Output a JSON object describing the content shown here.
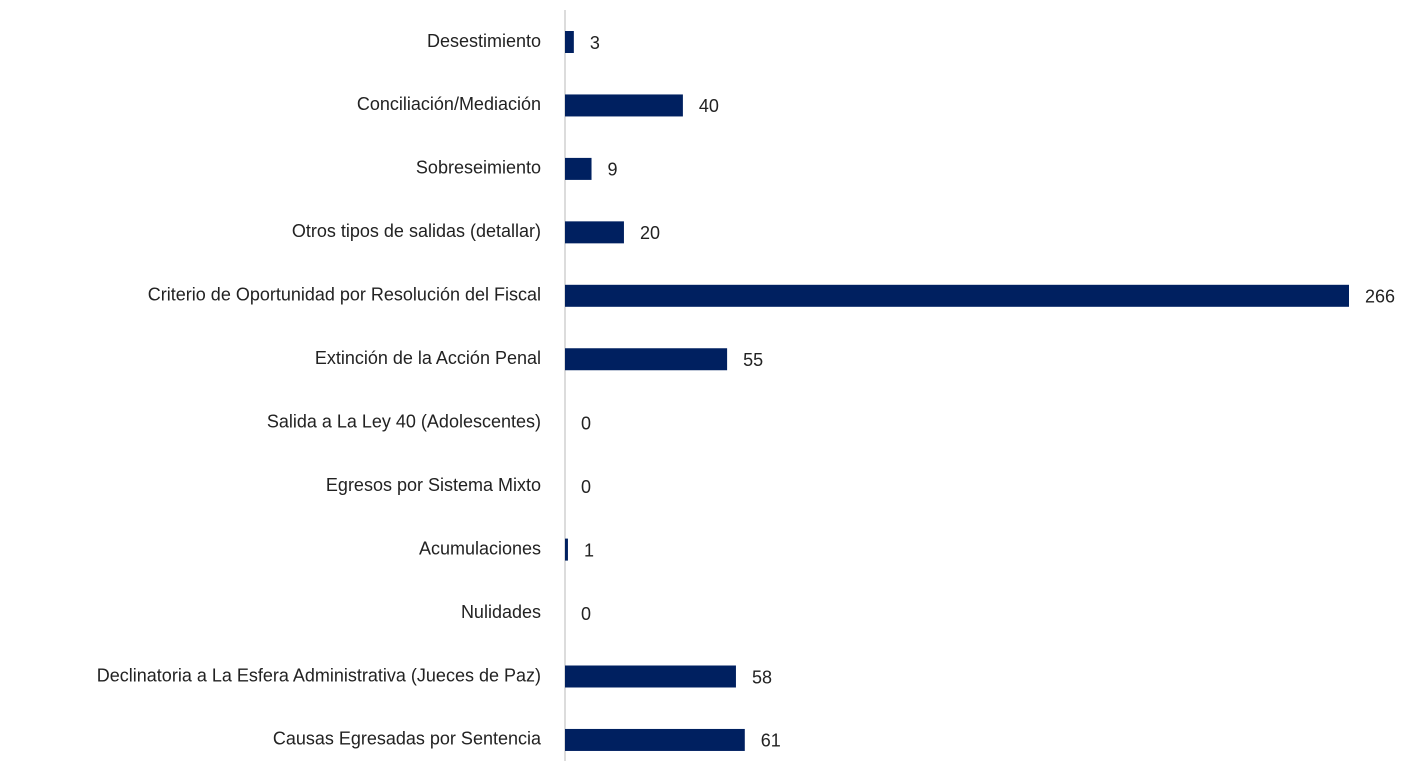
{
  "chart_data": {
    "type": "bar",
    "orientation": "horizontal",
    "categories": [
      "Desestimiento",
      "Conciliación/Mediación",
      "Sobreseimiento",
      "Otros tipos de salidas (detallar)",
      "Criterio de Oportunidad por Resolución del Fiscal",
      "Extinción de la Acción Penal",
      "Salida a La Ley 40 (Adolescentes)",
      "Egresos por Sistema Mixto",
      "Acumulaciones",
      "Nulidades",
      "Declinatoria a La Esfera Administrativa (Jueces de Paz)",
      "Causas Egresadas por Sentencia"
    ],
    "values": [
      3,
      40,
      9,
      20,
      266,
      55,
      0,
      0,
      1,
      0,
      58,
      61
    ],
    "color": "#002060",
    "xlim": [
      0,
      266
    ]
  }
}
